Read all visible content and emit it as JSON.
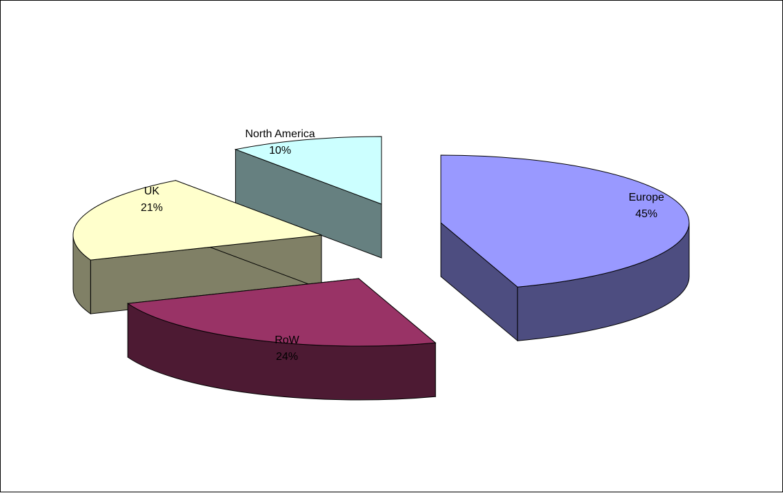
{
  "chart_data": {
    "type": "pie",
    "title": "",
    "style": "3d-exploded",
    "legend": "none",
    "slices": [
      {
        "name": "Europe",
        "value": 45,
        "label": "45%",
        "color": "#9999FF",
        "side_color": "#4D4D80"
      },
      {
        "name": "RoW",
        "value": 24,
        "label": "24%",
        "color": "#993366",
        "side_color": "#4D1A33"
      },
      {
        "name": "UK",
        "value": 21,
        "label": "21%",
        "color": "#FFFFCC",
        "side_color": "#808066"
      },
      {
        "name": "North America",
        "value": 10,
        "label": "10%",
        "color": "#CCFFFF",
        "side_color": "#668080"
      }
    ]
  }
}
